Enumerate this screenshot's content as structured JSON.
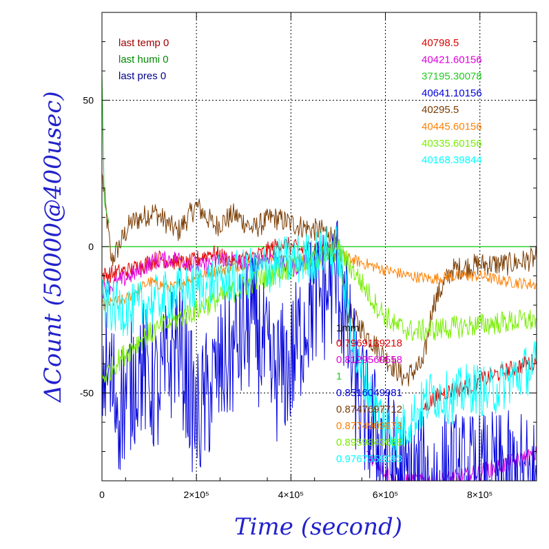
{
  "chart_data": {
    "type": "line",
    "xlabel": "Time (second)",
    "ylabel": "ΔCount (50000@400usec)",
    "xlim": [
      0,
      920000
    ],
    "ylim": [
      -80,
      80
    ],
    "x_ticks": [
      {
        "value": 0,
        "label": "0"
      },
      {
        "value": 200000,
        "label": "2×10⁵"
      },
      {
        "value": 400000,
        "label": "4×10⁵"
      },
      {
        "value": 600000,
        "label": "6×10⁵"
      },
      {
        "value": 800000,
        "label": "8×10⁵"
      }
    ],
    "y_ticks": [
      {
        "value": -50,
        "label": "-50"
      },
      {
        "value": 0,
        "label": "0"
      },
      {
        "value": 50,
        "label": "50"
      }
    ],
    "grid": true,
    "reference_line": {
      "y": 0,
      "color": "#00cc00"
    },
    "legend_left": [
      {
        "text": "last temp 0",
        "color": "#a00000"
      },
      {
        "text": "last humi 0",
        "color": "#008800"
      },
      {
        "text": "last pres 0",
        "color": "#000088"
      }
    ],
    "legend_right": [
      {
        "text": "40798.5",
        "color": "#e00000"
      },
      {
        "text": "40421.60156",
        "color": "#e000e0"
      },
      {
        "text": "37195.30078",
        "color": "#22cc22"
      },
      {
        "text": "40641.10156",
        "color": "#0000dd"
      },
      {
        "text": "40295.5",
        "color": "#7a3b00"
      },
      {
        "text": "40445.60156",
        "color": "#ff8000"
      },
      {
        "text": "40335.60156",
        "color": "#77ee00"
      },
      {
        "text": "40168.39844",
        "color": "#00ffff"
      }
    ],
    "legend_bottom_title": {
      "text": "1mm",
      "color": "#000000"
    },
    "legend_bottom": [
      {
        "text": "0.7969139218",
        "color": "#e00000"
      },
      {
        "text": "0.8129569558",
        "color": "#e000e0"
      },
      {
        "text": "1",
        "color": "#22cc22"
      },
      {
        "text": "0.8516049981",
        "color": "#0000dd"
      },
      {
        "text": "0.8747697712",
        "color": "#7a3b00"
      },
      {
        "text": "0.8774909973",
        "color": "#ff8000"
      },
      {
        "text": "0.8959843668",
        "color": "#77ee00"
      },
      {
        "text": "0.9767559093",
        "color": "#00ffff"
      }
    ],
    "series": [
      {
        "color": "#7a3b00",
        "noise": 4,
        "points": [
          [
            0,
            25
          ],
          [
            20000,
            -5
          ],
          [
            60000,
            8
          ],
          [
            110000,
            12
          ],
          [
            160000,
            5
          ],
          [
            200000,
            14
          ],
          [
            240000,
            7
          ],
          [
            280000,
            11
          ],
          [
            320000,
            6
          ],
          [
            360000,
            10
          ],
          [
            400000,
            8
          ],
          [
            440000,
            6
          ],
          [
            480000,
            5
          ],
          [
            500000,
            0
          ],
          [
            520000,
            -22
          ],
          [
            560000,
            -30
          ],
          [
            600000,
            -38
          ],
          [
            640000,
            -45
          ],
          [
            680000,
            -40
          ],
          [
            700000,
            -20
          ],
          [
            740000,
            -8
          ],
          [
            800000,
            -6
          ],
          [
            860000,
            -6
          ],
          [
            920000,
            -4
          ]
        ]
      },
      {
        "color": "#ff8000",
        "noise": 2,
        "points": [
          [
            0,
            -20
          ],
          [
            50000,
            -18
          ],
          [
            100000,
            -12
          ],
          [
            150000,
            -14
          ],
          [
            200000,
            -10
          ],
          [
            250000,
            -8
          ],
          [
            300000,
            -6
          ],
          [
            350000,
            -4
          ],
          [
            400000,
            -5
          ],
          [
            450000,
            -3
          ],
          [
            500000,
            -2
          ],
          [
            520000,
            -4
          ],
          [
            560000,
            -6
          ],
          [
            600000,
            -8
          ],
          [
            650000,
            -10
          ],
          [
            700000,
            -11
          ],
          [
            760000,
            -10
          ],
          [
            800000,
            -10
          ],
          [
            860000,
            -12
          ],
          [
            920000,
            -13
          ]
        ]
      },
      {
        "color": "#e00000",
        "noise": 3,
        "points": [
          [
            0,
            -10
          ],
          [
            60000,
            -8
          ],
          [
            120000,
            -4
          ],
          [
            180000,
            -6
          ],
          [
            230000,
            -2
          ],
          [
            280000,
            -5
          ],
          [
            330000,
            -3
          ],
          [
            380000,
            1
          ],
          [
            420000,
            -1
          ],
          [
            460000,
            0
          ],
          [
            500000,
            0
          ],
          [
            510000,
            null
          ],
          [
            680000,
            -55
          ],
          [
            720000,
            -50
          ],
          [
            770000,
            -48
          ],
          [
            830000,
            -44
          ],
          [
            880000,
            -41
          ],
          [
            920000,
            -39
          ]
        ]
      },
      {
        "color": "#e000e0",
        "noise": 3,
        "points": [
          [
            0,
            -15
          ],
          [
            60000,
            -10
          ],
          [
            110000,
            -5
          ],
          [
            160000,
            -4
          ],
          [
            210000,
            -7
          ],
          [
            260000,
            -4
          ],
          [
            310000,
            -6
          ],
          [
            360000,
            -3
          ],
          [
            400000,
            -8
          ],
          [
            440000,
            -4
          ],
          [
            480000,
            -3
          ],
          [
            500000,
            -3
          ],
          [
            510000,
            null
          ],
          [
            560000,
            -70
          ],
          [
            620000,
            -80
          ],
          [
            680000,
            -80
          ],
          [
            720000,
            -80
          ],
          [
            780000,
            -78
          ],
          [
            840000,
            -75
          ],
          [
            900000,
            -72
          ],
          [
            920000,
            -71
          ]
        ]
      },
      {
        "color": "#0000dd",
        "noise": 24,
        "points": [
          [
            0,
            -40
          ],
          [
            40000,
            -55
          ],
          [
            80000,
            -40
          ],
          [
            120000,
            -50
          ],
          [
            160000,
            -30
          ],
          [
            200000,
            -60
          ],
          [
            240000,
            -45
          ],
          [
            280000,
            -35
          ],
          [
            320000,
            -25
          ],
          [
            360000,
            -45
          ],
          [
            400000,
            -40
          ],
          [
            440000,
            -20
          ],
          [
            480000,
            -15
          ],
          [
            500000,
            -10
          ],
          [
            540000,
            -50
          ],
          [
            580000,
            -65
          ],
          [
            640000,
            -80
          ],
          [
            700000,
            -80
          ],
          [
            760000,
            -80
          ],
          [
            820000,
            -80
          ],
          [
            880000,
            -80
          ],
          [
            920000,
            -80
          ]
        ]
      },
      {
        "color": "#77ee00",
        "noise": 4,
        "points": [
          [
            0,
            -45
          ],
          [
            40000,
            -38
          ],
          [
            80000,
            -32
          ],
          [
            120000,
            -28
          ],
          [
            170000,
            -24
          ],
          [
            220000,
            -20
          ],
          [
            270000,
            -16
          ],
          [
            320000,
            -12
          ],
          [
            370000,
            -9
          ],
          [
            420000,
            -6
          ],
          [
            470000,
            -3
          ],
          [
            500000,
            -1
          ],
          [
            540000,
            -10
          ],
          [
            580000,
            -20
          ],
          [
            620000,
            -27
          ],
          [
            660000,
            -29
          ],
          [
            720000,
            -28
          ],
          [
            780000,
            -27
          ],
          [
            840000,
            -26
          ],
          [
            920000,
            -25
          ]
        ]
      },
      {
        "color": "#00ffff",
        "noise": 9,
        "points": [
          [
            0,
            -20
          ],
          [
            60000,
            -22
          ],
          [
            120000,
            -18
          ],
          [
            180000,
            -15
          ],
          [
            240000,
            -12
          ],
          [
            290000,
            -10
          ],
          [
            340000,
            -8
          ],
          [
            390000,
            -5
          ],
          [
            430000,
            -4
          ],
          [
            470000,
            -2
          ],
          [
            500000,
            -1
          ],
          [
            540000,
            -40
          ],
          [
            580000,
            -55
          ],
          [
            620000,
            -65
          ],
          [
            660000,
            -58
          ],
          [
            700000,
            -50
          ],
          [
            740000,
            -52
          ],
          [
            780000,
            -48
          ],
          [
            820000,
            -50
          ],
          [
            860000,
            -46
          ],
          [
            900000,
            -42
          ],
          [
            920000,
            -40
          ]
        ]
      },
      {
        "color": "#22cc22",
        "noise": 0,
        "points": [
          [
            0,
            60
          ],
          [
            5000,
            15
          ],
          [
            15000,
            8
          ]
        ]
      }
    ]
  }
}
